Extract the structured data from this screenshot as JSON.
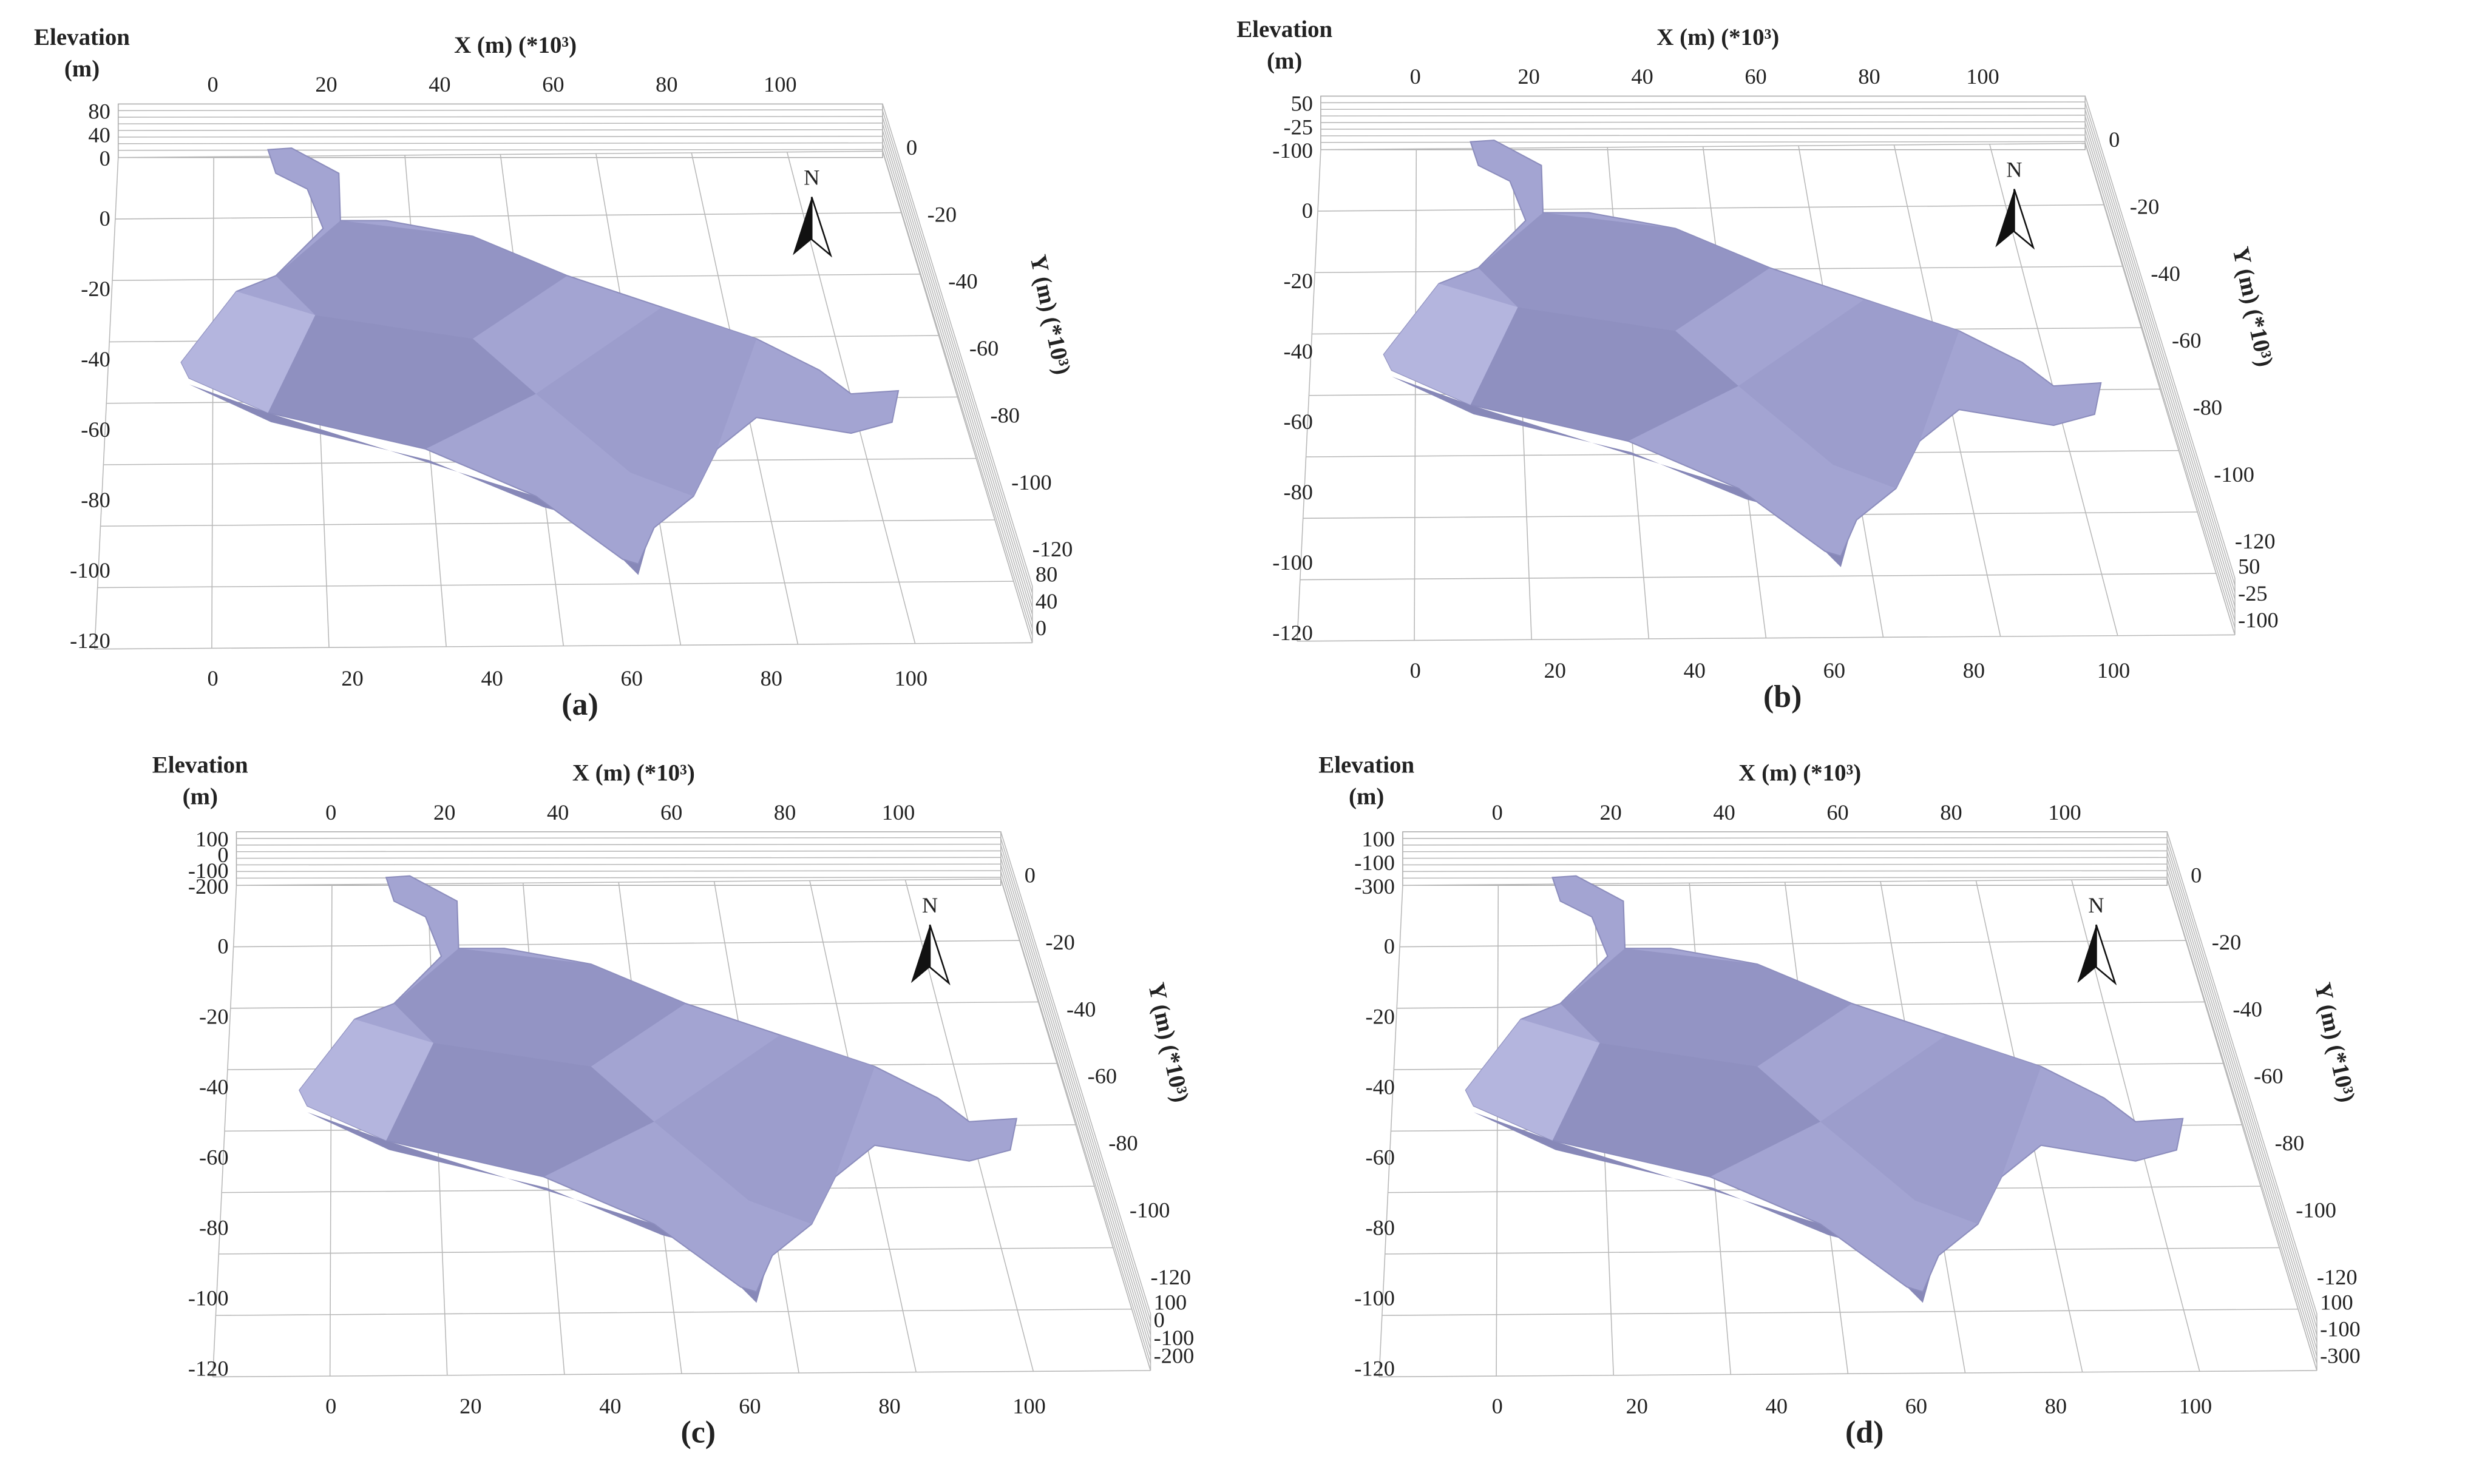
{
  "panels": [
    {
      "caption": "(a)",
      "elevation_label": [
        "Elevation",
        "(m)"
      ],
      "x_label": "X (m) (*10³)",
      "y_label": "Y (m) (*10³)",
      "elevation_ticks": [
        80,
        40,
        0
      ],
      "x_ticks": [
        0,
        20,
        40,
        60,
        80,
        100
      ],
      "y_ticks": [
        0,
        -20,
        -40,
        -60,
        -80,
        -100,
        -120
      ]
    },
    {
      "caption": "(b)",
      "elevation_label": [
        "Elevation",
        "(m)"
      ],
      "x_label": "X (m) (*10³)",
      "y_label": "Y (m) (*10³)",
      "elevation_ticks": [
        50,
        -25,
        -100
      ],
      "x_ticks": [
        0,
        20,
        40,
        60,
        80,
        100
      ],
      "y_ticks": [
        0,
        -20,
        -40,
        -60,
        -80,
        -100,
        -120
      ]
    },
    {
      "caption": "(c)",
      "elevation_label": [
        "Elevation",
        "(m)"
      ],
      "x_label": "X (m) (*10³)",
      "y_label": "Y (m) (*10³)",
      "elevation_ticks": [
        100,
        0,
        -100,
        -200
      ],
      "x_ticks": [
        0,
        20,
        40,
        60,
        80,
        100
      ],
      "y_ticks": [
        0,
        -20,
        -40,
        -60,
        -80,
        -100,
        -120
      ]
    },
    {
      "caption": "(d)",
      "elevation_label": [
        "Elevation",
        "(m)"
      ],
      "x_label": "X (m) (*10³)",
      "y_label": "Y (m) (*10³)",
      "elevation_ticks": [
        100,
        -100,
        -300
      ],
      "x_ticks": [
        0,
        20,
        40,
        60,
        80,
        100
      ],
      "y_ticks": [
        0,
        -20,
        -40,
        -60,
        -80,
        -100,
        -120
      ]
    }
  ],
  "north": "N"
}
